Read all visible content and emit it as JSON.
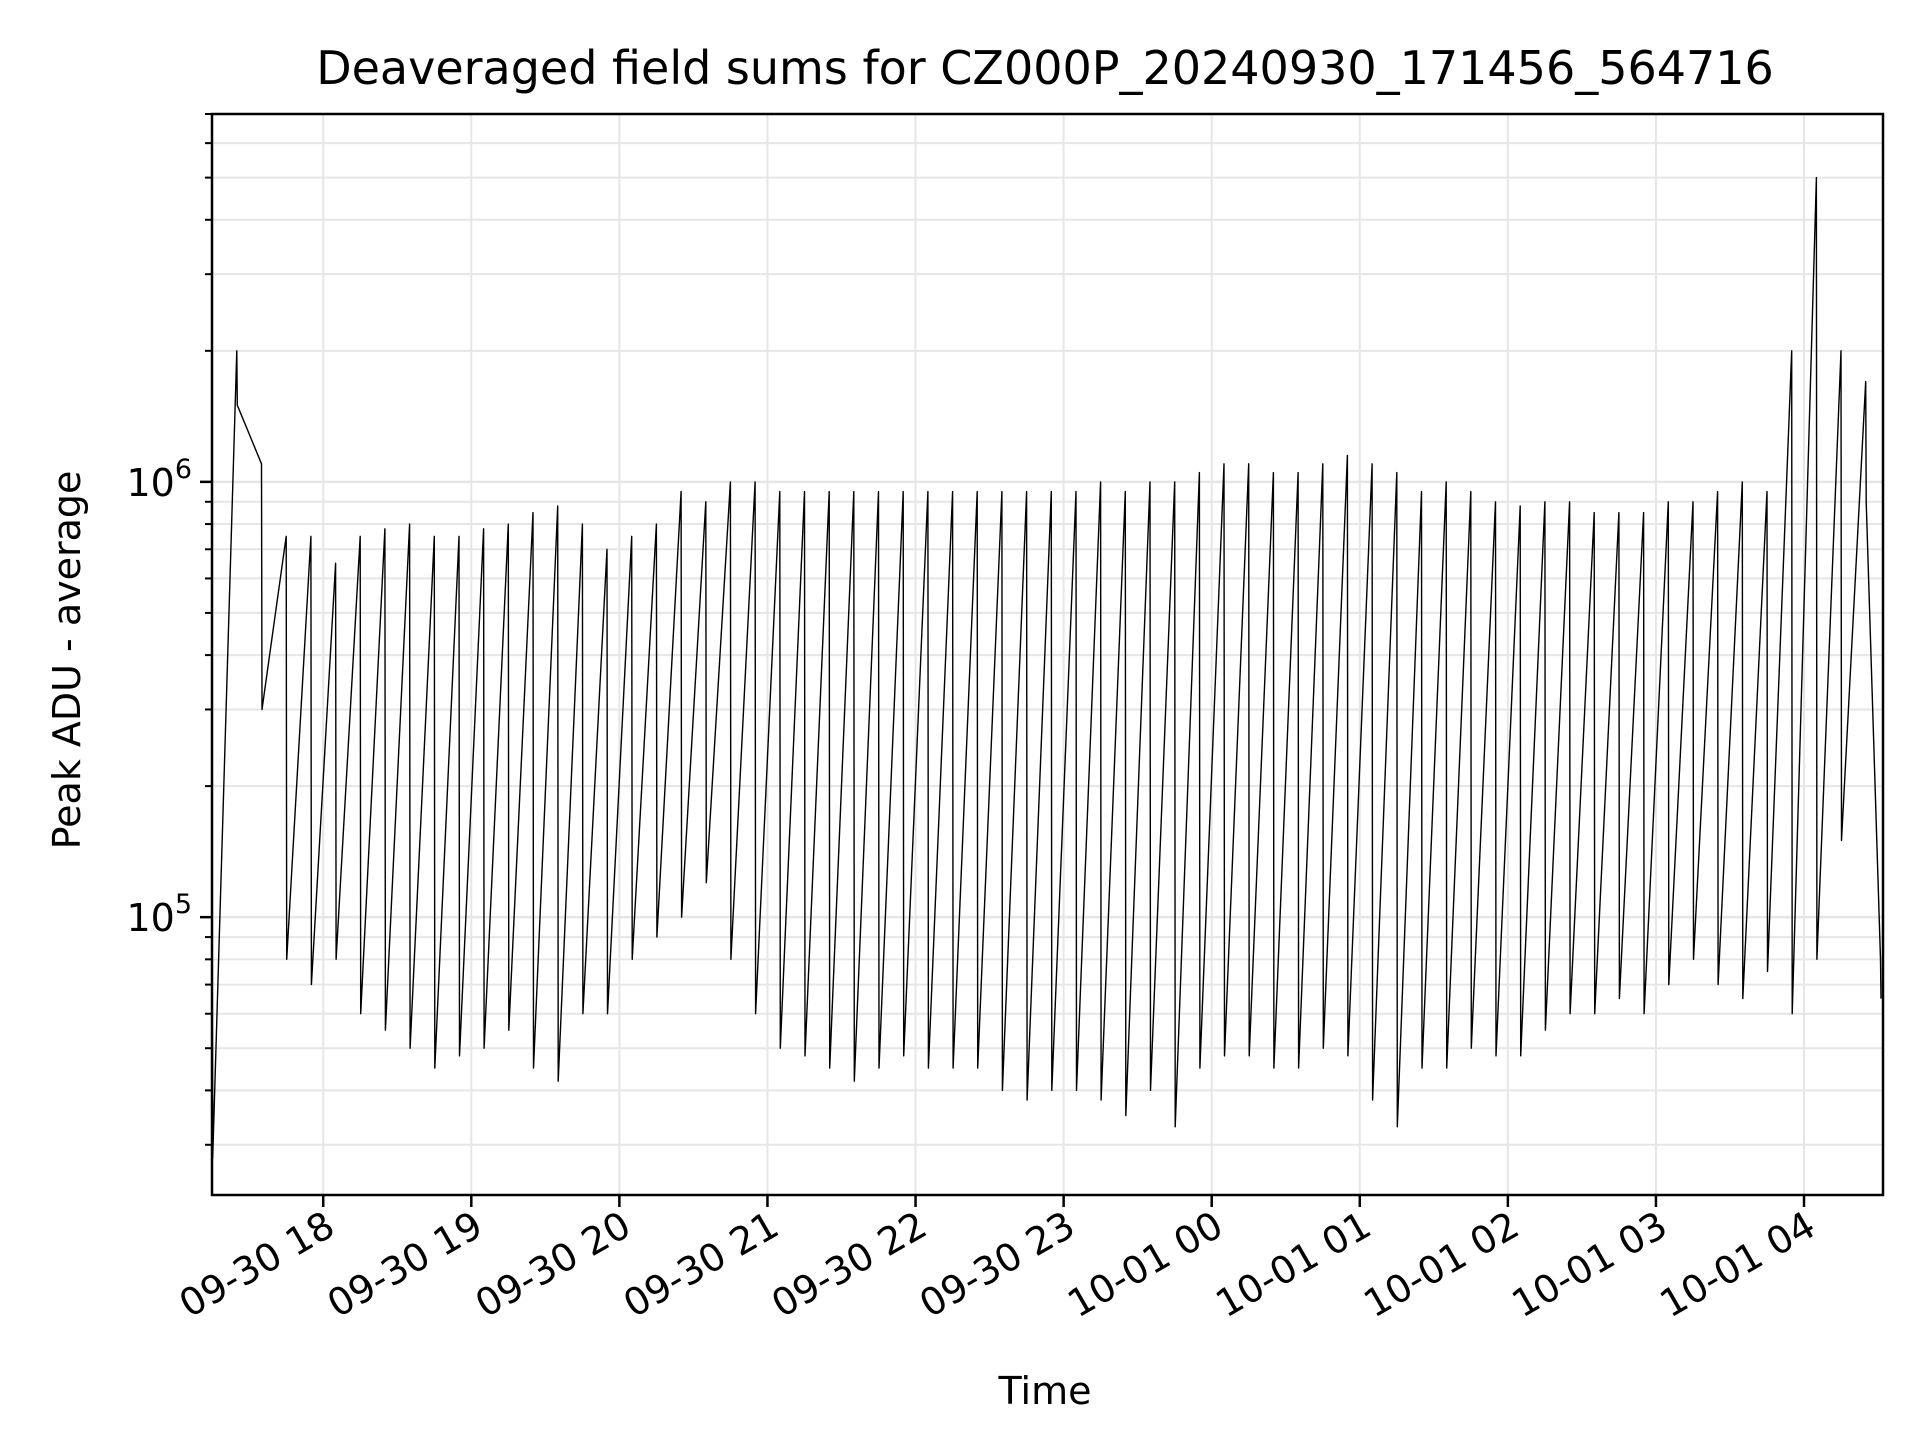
{
  "chart_data": {
    "type": "line",
    "title": "Deaveraged field sums for CZ000P_20240930_171456_564716",
    "xlabel": "Time",
    "ylabel": "Peak ADU - average",
    "x_type": "datetime",
    "xlim": [
      "2024-09-30T17:14:56",
      "2024-10-01T04:32:00"
    ],
    "ylim": [
      23000,
      7000000
    ],
    "yscale": "log",
    "grid": true,
    "line_color": "#000000",
    "grid_color": "#e6e6e6",
    "x_ticks": [
      {
        "value": "2024-09-30T18:00:00",
        "label": "09-30 18"
      },
      {
        "value": "2024-09-30T19:00:00",
        "label": "09-30 19"
      },
      {
        "value": "2024-09-30T20:00:00",
        "label": "09-30 20"
      },
      {
        "value": "2024-09-30T21:00:00",
        "label": "09-30 21"
      },
      {
        "value": "2024-09-30T22:00:00",
        "label": "09-30 22"
      },
      {
        "value": "2024-09-30T23:00:00",
        "label": "09-30 23"
      },
      {
        "value": "2024-10-01T00:00:00",
        "label": "10-01 00"
      },
      {
        "value": "2024-10-01T01:00:00",
        "label": "10-01 01"
      },
      {
        "value": "2024-10-01T02:00:00",
        "label": "10-01 02"
      },
      {
        "value": "2024-10-01T03:00:00",
        "label": "10-01 03"
      },
      {
        "value": "2024-10-01T04:00:00",
        "label": "10-01 04"
      }
    ],
    "y_ticks": [
      {
        "value": 100000,
        "base": "10",
        "exp": "5"
      },
      {
        "value": 1000000,
        "base": "10",
        "exp": "6"
      }
    ],
    "series": [
      {
        "note": "dense signal; min/max envelope per time sample",
        "x": [
          "2024-09-30T17:15:00",
          "2024-09-30T17:25:00",
          "2024-09-30T17:35:00",
          "2024-09-30T17:45:00",
          "2024-09-30T17:55:00",
          "2024-09-30T18:05:00",
          "2024-09-30T18:15:00",
          "2024-09-30T18:25:00",
          "2024-09-30T18:35:00",
          "2024-09-30T18:45:00",
          "2024-09-30T18:55:00",
          "2024-09-30T19:05:00",
          "2024-09-30T19:15:00",
          "2024-09-30T19:25:00",
          "2024-09-30T19:35:00",
          "2024-09-30T19:45:00",
          "2024-09-30T19:55:00",
          "2024-09-30T20:05:00",
          "2024-09-30T20:15:00",
          "2024-09-30T20:25:00",
          "2024-09-30T20:35:00",
          "2024-09-30T20:45:00",
          "2024-09-30T20:55:00",
          "2024-09-30T21:05:00",
          "2024-09-30T21:15:00",
          "2024-09-30T21:25:00",
          "2024-09-30T21:35:00",
          "2024-09-30T21:45:00",
          "2024-09-30T21:55:00",
          "2024-09-30T22:05:00",
          "2024-09-30T22:15:00",
          "2024-09-30T22:25:00",
          "2024-09-30T22:35:00",
          "2024-09-30T22:45:00",
          "2024-09-30T22:55:00",
          "2024-09-30T23:05:00",
          "2024-09-30T23:15:00",
          "2024-09-30T23:25:00",
          "2024-09-30T23:35:00",
          "2024-09-30T23:45:00",
          "2024-09-30T23:55:00",
          "2024-10-01T00:05:00",
          "2024-10-01T00:15:00",
          "2024-10-01T00:25:00",
          "2024-10-01T00:35:00",
          "2024-10-01T00:45:00",
          "2024-10-01T00:55:00",
          "2024-10-01T01:05:00",
          "2024-10-01T01:15:00",
          "2024-10-01T01:25:00",
          "2024-10-01T01:35:00",
          "2024-10-01T01:45:00",
          "2024-10-01T01:55:00",
          "2024-10-01T02:05:00",
          "2024-10-01T02:15:00",
          "2024-10-01T02:25:00",
          "2024-10-01T02:35:00",
          "2024-10-01T02:45:00",
          "2024-10-01T02:55:00",
          "2024-10-01T03:05:00",
          "2024-10-01T03:15:00",
          "2024-10-01T03:25:00",
          "2024-10-01T03:35:00",
          "2024-10-01T03:45:00",
          "2024-10-01T03:55:00",
          "2024-10-01T04:05:00",
          "2024-10-01T04:15:00",
          "2024-10-01T04:25:00",
          "2024-10-01T04:31:00"
        ],
        "y_min": [
          28000,
          1500000,
          300000,
          80000,
          70000,
          80000,
          60000,
          55000,
          50000,
          45000,
          48000,
          50000,
          55000,
          45000,
          42000,
          60000,
          60000,
          80000,
          90000,
          100000,
          120000,
          80000,
          60000,
          50000,
          48000,
          45000,
          42000,
          45000,
          48000,
          45000,
          45000,
          45000,
          40000,
          38000,
          40000,
          40000,
          38000,
          35000,
          40000,
          33000,
          45000,
          48000,
          48000,
          45000,
          45000,
          50000,
          48000,
          38000,
          33000,
          45000,
          45000,
          50000,
          48000,
          48000,
          55000,
          60000,
          60000,
          65000,
          60000,
          70000,
          80000,
          70000,
          65000,
          75000,
          60000,
          80000,
          150000,
          900000,
          65000
        ],
        "y_max": [
          90000,
          2000000,
          1100000,
          750000,
          750000,
          650000,
          750000,
          780000,
          800000,
          750000,
          750000,
          780000,
          800000,
          850000,
          880000,
          800000,
          700000,
          750000,
          800000,
          950000,
          900000,
          1000000,
          1000000,
          950000,
          950000,
          950000,
          950000,
          950000,
          950000,
          950000,
          950000,
          950000,
          950000,
          950000,
          950000,
          950000,
          1000000,
          950000,
          1000000,
          1000000,
          1050000,
          1100000,
          1100000,
          1050000,
          1050000,
          1100000,
          1150000,
          1100000,
          1050000,
          950000,
          1000000,
          950000,
          900000,
          880000,
          900000,
          900000,
          850000,
          850000,
          850000,
          900000,
          900000,
          950000,
          1000000,
          950000,
          2000000,
          5000000,
          2000000,
          1700000,
          80000
        ]
      }
    ]
  }
}
